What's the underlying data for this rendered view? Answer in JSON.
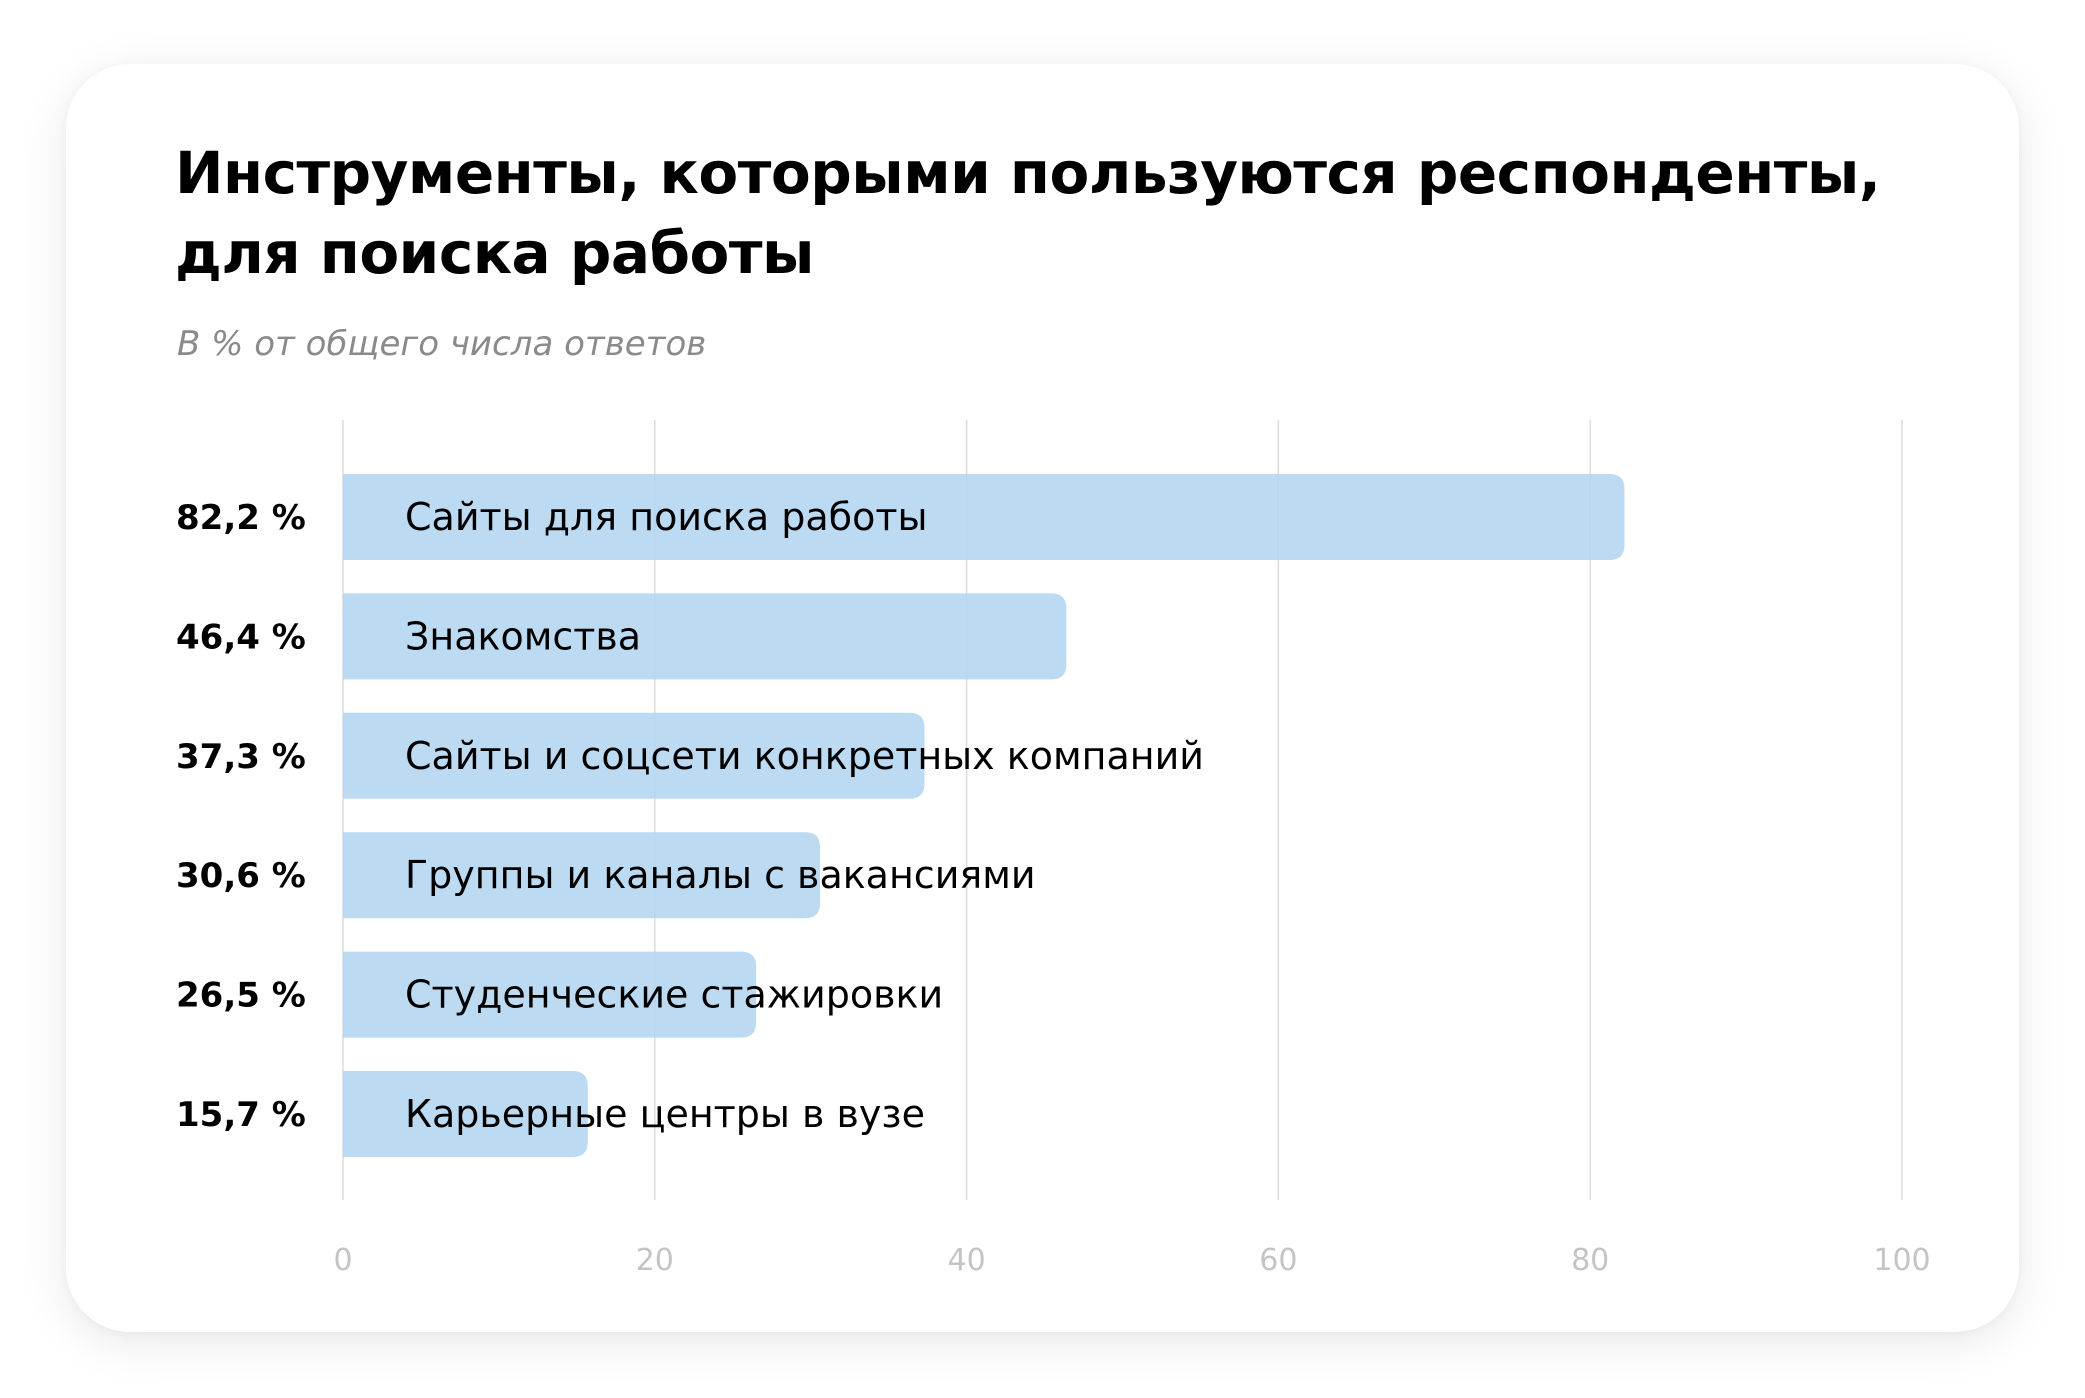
{
  "title": "Инструменты, которыми пользуются респонденты, для поиска работы",
  "subtitle": "В % от общего числа ответов",
  "colors": {
    "bar": "#b3d5ef",
    "grid": "#dcdcdc",
    "tick_text": "#c4c4c4",
    "value_text": "#000000",
    "label_text": "#000000"
  },
  "chart_data": {
    "type": "bar",
    "orientation": "horizontal",
    "categories": [
      "Сайты для поиска работы",
      "Знакомства",
      "Сайты и соцсети конкретных компаний",
      "Группы и каналы с вакансиями",
      "Студенческие стажировки",
      "Карьерные центры в вузе"
    ],
    "values": [
      82.2,
      46.4,
      37.3,
      30.6,
      26.5,
      15.7
    ],
    "value_labels": [
      "82,2 %",
      "46,4 %",
      "37,3 %",
      "30,6 %",
      "26,5 %",
      "15,7 %"
    ],
    "xlim": [
      0,
      100
    ],
    "xticks": [
      0,
      20,
      40,
      60,
      80,
      100
    ],
    "xtick_labels": [
      "0",
      "20",
      "40",
      "60",
      "80",
      "100"
    ],
    "grid": true,
    "legend": "none"
  }
}
